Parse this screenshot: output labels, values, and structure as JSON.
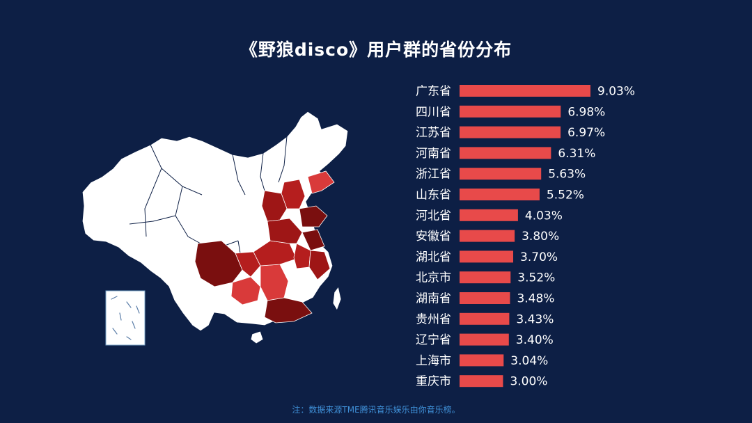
{
  "title": "《野狼disco》用户群的省份分布",
  "footnote": "注：数据来源TME腾讯音乐娱乐由你音乐榜。",
  "colors": {
    "background": "#0d1f45",
    "bar": "#e84a4a",
    "text": "#ffffff",
    "footnote": "#3f8fd6",
    "map_land": "#ffffff",
    "map_dark": "#7a0f0f",
    "map_mid": "#b51e1e",
    "map_light": "#d93a3a"
  },
  "chart_data": {
    "type": "bar",
    "orientation": "horizontal",
    "categories": [
      "广东省",
      "四川省",
      "江苏省",
      "河南省",
      "浙江省",
      "山东省",
      "河北省",
      "安徽省",
      "湖北省",
      "北京市",
      "湖南省",
      "贵州省",
      "辽宁省",
      "上海市",
      "重庆市"
    ],
    "values": [
      9.03,
      6.98,
      6.97,
      6.31,
      5.63,
      5.52,
      4.03,
      3.8,
      3.7,
      3.52,
      3.48,
      3.43,
      3.4,
      3.04,
      3.0
    ],
    "value_labels": [
      "9.03%",
      "6.98%",
      "6.97%",
      "6.31%",
      "5.63%",
      "5.52%",
      "4.03%",
      "3.80%",
      "3.70%",
      "3.52%",
      "3.48%",
      "3.43%",
      "3.40%",
      "3.04%",
      "3.00%"
    ],
    "xlim": [
      0,
      9.03
    ],
    "grid": false,
    "legend": "none"
  }
}
